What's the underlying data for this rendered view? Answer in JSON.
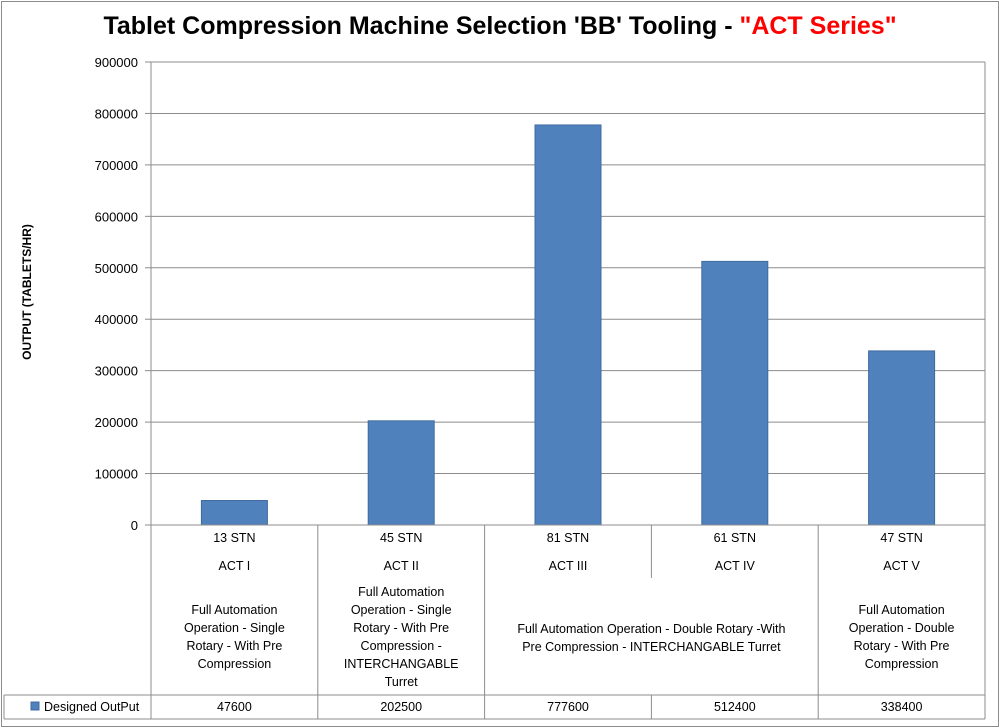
{
  "chart_data": {
    "type": "bar",
    "title": "Tablet Compression Machine Selection 'BB' Tooling - ",
    "title_highlight": "\"ACT Series\"",
    "title_highlight_color": "#ff0000",
    "ylabel": "OUTPUT (TABLETS/HR)",
    "xlabel": "",
    "ylim": [
      0,
      900000
    ],
    "yticks": [
      "0",
      "100000",
      "200000",
      "300000",
      "400000",
      "500000",
      "600000",
      "700000",
      "800000",
      "900000"
    ],
    "grid": true,
    "bar_color": "#4f81bd",
    "categories": [
      {
        "stations": "13 STN",
        "model": "ACT I",
        "description": [
          "Full Automation",
          "Operation - Single",
          "Rotary - With Pre",
          "Compression"
        ]
      },
      {
        "stations": "45 STN",
        "model": "ACT II",
        "description": [
          "Full Automation",
          "Operation - Single",
          "Rotary - With Pre",
          "Compression -",
          "INTERCHANGABLE",
          "Turret"
        ]
      },
      {
        "stations": "81 STN",
        "model": "ACT III",
        "description": []
      },
      {
        "stations": "61 STN",
        "model": "ACT IV",
        "description": []
      },
      {
        "stations": "47 STN",
        "model": "ACT V",
        "description": [
          "Full Automation",
          "Operation - Double",
          "Rotary - With Pre",
          "Compression"
        ]
      }
    ],
    "merged_description": [
      "Full Automation Operation - Double Rotary -With",
      "Pre Compression -   INTERCHANGABLE Turret"
    ],
    "series": [
      {
        "name": "Designed OutPut",
        "values": [
          47600,
          202500,
          777600,
          512400,
          338400
        ],
        "labels": [
          "47600",
          "202500",
          "777600",
          "512400",
          "338400"
        ]
      }
    ],
    "legend_position": "table-row-left"
  }
}
